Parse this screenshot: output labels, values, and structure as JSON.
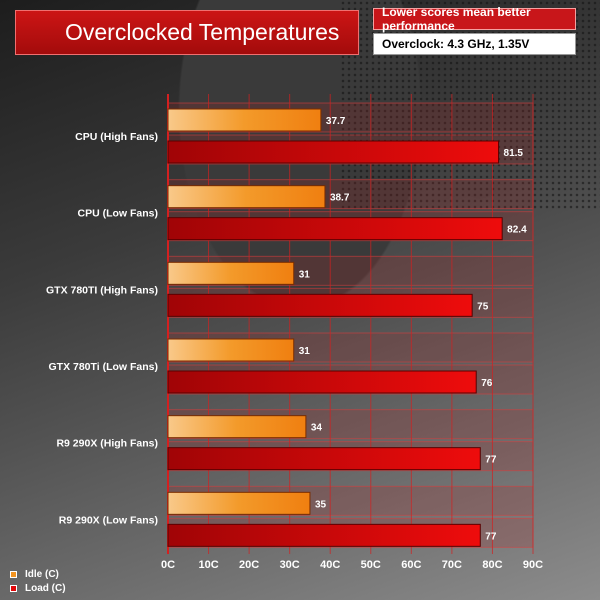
{
  "header": {
    "title": "Overclocked Temperatures",
    "note": "Lower scores mean better performance",
    "overclock": "Overclock: 4.3 GHz, 1.35V"
  },
  "colors": {
    "idle": "#f39420",
    "load": "#e0080a",
    "title_bg": "#b80f0f"
  },
  "legend": [
    {
      "label": "Idle (C)",
      "color": "#f39420"
    },
    {
      "label": "Load (C)",
      "color": "#e0080a"
    }
  ],
  "chart_data": {
    "type": "bar",
    "orientation": "horizontal",
    "title": "Overclocked Temperatures",
    "categories": [
      "CPU (High Fans)",
      "CPU (Low Fans)",
      "GTX 780TI (High Fans)",
      "GTX 780Ti (Low Fans)",
      "R9 290X (High Fans)",
      "R9 290X (Low Fans)"
    ],
    "series": [
      {
        "name": "Idle (C)",
        "values": [
          37.7,
          38.7,
          31,
          31,
          34,
          35
        ]
      },
      {
        "name": "Load (C)",
        "values": [
          81.5,
          82.4,
          75,
          76,
          77,
          77
        ]
      }
    ],
    "value_labels": [
      [
        "37.7",
        "38.7",
        "31",
        "31",
        "34",
        "35"
      ],
      [
        "81.5",
        "82.4",
        "75",
        "76",
        "77",
        "77"
      ]
    ],
    "xlim": [
      0,
      90
    ],
    "xticks": [
      "0C",
      "10C",
      "20C",
      "30C",
      "40C",
      "50C",
      "60C",
      "70C",
      "80C",
      "90C"
    ],
    "grid": true,
    "legend_position": "bottom-left"
  }
}
